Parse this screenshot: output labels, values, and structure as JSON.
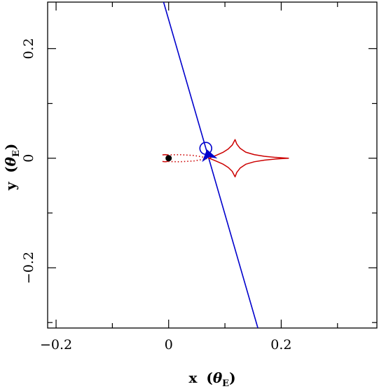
{
  "chart_data": {
    "type": "line",
    "title": "",
    "xlabel": "x",
    "ylabel": "y",
    "x_unit_symbol": "θ",
    "x_unit_subscript": "E",
    "y_unit_symbol": "θ",
    "y_unit_subscript": "E",
    "xlim": [
      -0.215,
      0.37
    ],
    "ylim": [
      -0.31,
      0.285
    ],
    "x_ticks": [
      -0.2,
      0,
      0.2
    ],
    "x_tick_labels": [
      "−0.2",
      "0",
      "0.2"
    ],
    "y_ticks": [
      -0.2,
      0,
      0.2
    ],
    "y_tick_labels": [
      "−0.2",
      "0",
      "0.2"
    ],
    "grid": false,
    "colors": {
      "trajectory": "#0000cc",
      "caustic": "#cc0000",
      "lens": "#000000",
      "frame": "#000000"
    },
    "series": [
      {
        "kind": "source-trajectory",
        "style": "solid",
        "points": [
          [
            -0.009,
            0.285
          ],
          [
            0.1585,
            -0.31
          ]
        ]
      },
      {
        "kind": "central-caustic",
        "style": "solid",
        "points": [
          [
            -0.011,
            0.006
          ],
          [
            -0.006,
            0.0065
          ],
          [
            -0.002,
            0.006
          ],
          [
            -0.002,
            -0.006
          ],
          [
            -0.006,
            -0.0065
          ],
          [
            -0.011,
            -0.006
          ]
        ]
      },
      {
        "kind": "planetary-caustic",
        "style": "solid",
        "points": [
          [
            0.072,
            0.0
          ],
          [
            0.085,
            0.0055
          ],
          [
            0.097,
            0.011
          ],
          [
            0.106,
            0.017
          ],
          [
            0.113,
            0.024
          ],
          [
            0.118,
            0.034
          ],
          [
            0.121,
            0.026
          ],
          [
            0.127,
            0.018
          ],
          [
            0.137,
            0.011
          ],
          [
            0.152,
            0.0065
          ],
          [
            0.17,
            0.0035
          ],
          [
            0.19,
            0.0015
          ],
          [
            0.205,
            0.0005
          ],
          [
            0.213,
            0.0
          ],
          [
            0.205,
            -0.0005
          ],
          [
            0.19,
            -0.0015
          ],
          [
            0.17,
            -0.0035
          ],
          [
            0.152,
            -0.0065
          ],
          [
            0.137,
            -0.011
          ],
          [
            0.127,
            -0.018
          ],
          [
            0.121,
            -0.026
          ],
          [
            0.118,
            -0.034
          ],
          [
            0.113,
            -0.024
          ],
          [
            0.106,
            -0.017
          ],
          [
            0.097,
            -0.011
          ],
          [
            0.085,
            -0.0055
          ],
          [
            0.072,
            0.0
          ]
        ]
      },
      {
        "kind": "caustic-connector",
        "style": "dotted",
        "points": [
          [
            -0.002,
            0.006
          ],
          [
            0.02,
            0.0065
          ],
          [
            0.045,
            0.005
          ],
          [
            0.072,
            0.0
          ],
          [
            0.045,
            -0.005
          ],
          [
            0.02,
            -0.0065
          ],
          [
            -0.002,
            -0.006
          ]
        ]
      }
    ],
    "markers": [
      {
        "kind": "lens-star",
        "x": 0.0,
        "y": 0.0
      },
      {
        "kind": "source-circle",
        "x": 0.066,
        "y": 0.018,
        "radius": 0.0105
      },
      {
        "kind": "direction-arrow",
        "x": 0.068,
        "y": 0.011,
        "direction": "down-right"
      }
    ]
  }
}
